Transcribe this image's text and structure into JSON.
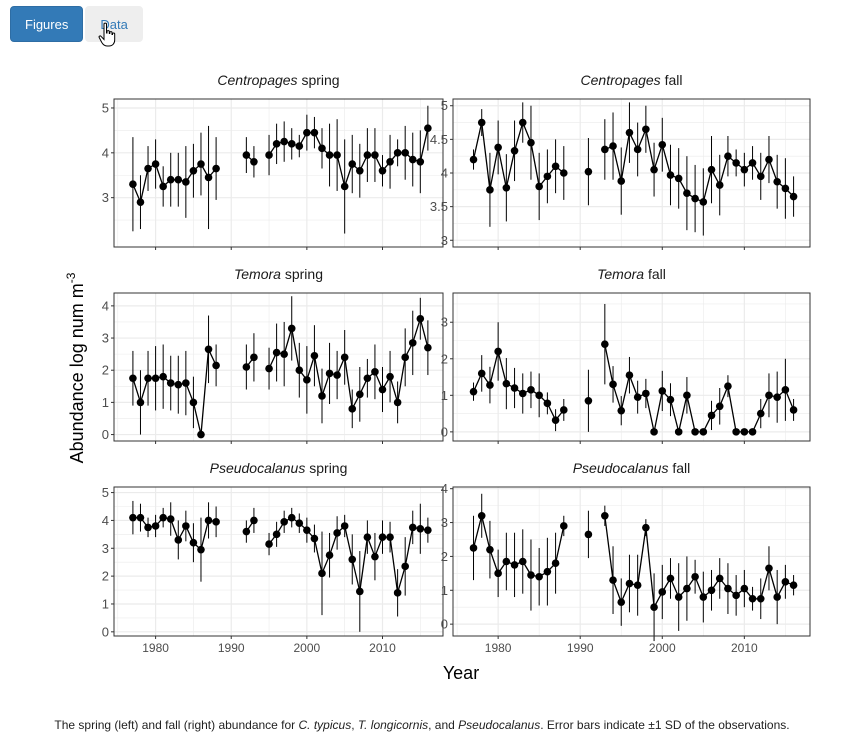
{
  "tabs": [
    {
      "label": "Figures",
      "active": true
    },
    {
      "label": "Data",
      "active": false
    }
  ],
  "cursor_icon": "hand-pointer-icon",
  "caption": {
    "p1": "The spring (left) and fall (right) abundance for ",
    "s1": "C. typicus",
    "p2": ", ",
    "s2": "T. longicornis",
    "p3": ", and ",
    "s3": "Pseudocalanus",
    "p4": ". Error bars indicate ±1 SD of the observations."
  },
  "chart_data": {
    "type": "scatter",
    "xlabel": "Year",
    "ylabel": "Abundance log num m",
    "ylabel_superscript": "-3",
    "xlim": [
      1974.5,
      2018
    ],
    "xticks": [
      1980,
      1990,
      2000,
      2010
    ],
    "colors": {
      "points": "#000000",
      "grid": "#ebebeb",
      "strip_background": "#ffffff"
    },
    "panels": [
      {
        "id": "centropages-spring",
        "title_italic": "Centropages",
        "title_plain": " spring",
        "ylim": [
          1.9,
          5.2
        ],
        "yticks": [
          3,
          4,
          5
        ],
        "x": [
          1977,
          1978,
          1979,
          1980,
          1981,
          1982,
          1983,
          1984,
          1985,
          1986,
          1987,
          1988,
          1992,
          1993,
          1995,
          1996,
          1997,
          1998,
          1999,
          2000,
          2001,
          2002,
          2003,
          2004,
          2005,
          2006,
          2007,
          2008,
          2009,
          2010,
          2011,
          2012,
          2013,
          2014,
          2015,
          2016
        ],
        "y": [
          3.3,
          2.9,
          3.65,
          3.75,
          3.25,
          3.4,
          3.4,
          3.35,
          3.6,
          3.75,
          3.45,
          3.65,
          3.95,
          3.8,
          3.95,
          4.2,
          4.25,
          4.2,
          4.15,
          4.45,
          4.45,
          4.1,
          3.95,
          3.95,
          3.25,
          3.75,
          3.6,
          3.95,
          3.95,
          3.6,
          3.8,
          4.0,
          4.0,
          3.85,
          3.8,
          4.55
        ],
        "sd": [
          1.05,
          0.6,
          0.5,
          0.55,
          0.45,
          0.6,
          0.6,
          0.8,
          0.6,
          0.7,
          1.15,
          0.7,
          0.4,
          0.35,
          0.45,
          0.45,
          0.45,
          0.35,
          0.25,
          0.4,
          0.35,
          0.45,
          0.7,
          0.8,
          1.05,
          0.65,
          0.6,
          0.6,
          0.6,
          0.35,
          0.6,
          0.3,
          0.6,
          0.6,
          0.7,
          0.5
        ],
        "breaks_before_index": [
          12,
          14
        ]
      },
      {
        "id": "centropages-fall",
        "title_italic": "Centropages",
        "title_plain": " fall",
        "ylim": [
          2.9,
          5.1
        ],
        "yticks": [
          3.0,
          3.5,
          4.0,
          4.5,
          5.0
        ],
        "x": [
          1977,
          1978,
          1979,
          1980,
          1981,
          1982,
          1983,
          1984,
          1985,
          1986,
          1987,
          1988,
          1991,
          1993,
          1994,
          1995,
          1996,
          1997,
          1998,
          1999,
          2000,
          2001,
          2002,
          2003,
          2004,
          2005,
          2006,
          2007,
          2008,
          2009,
          2010,
          2011,
          2012,
          2013,
          2014,
          2015,
          2016
        ],
        "y": [
          4.2,
          4.75,
          3.75,
          4.38,
          3.78,
          4.33,
          4.75,
          4.45,
          3.8,
          3.95,
          4.1,
          4.0,
          4.02,
          4.35,
          4.4,
          3.88,
          4.6,
          4.35,
          4.65,
          4.05,
          4.42,
          3.97,
          3.92,
          3.7,
          3.62,
          3.57,
          4.05,
          3.82,
          4.25,
          4.15,
          4.05,
          4.15,
          3.95,
          4.2,
          3.87,
          3.77,
          3.65
        ],
        "sd": [
          0.15,
          0.2,
          0.55,
          0.4,
          0.5,
          0.45,
          0.3,
          0.55,
          0.5,
          0.4,
          0.4,
          0.4,
          0.5,
          0.45,
          0.5,
          0.5,
          0.45,
          0.4,
          0.35,
          0.4,
          0.4,
          0.45,
          0.45,
          0.55,
          0.5,
          0.5,
          0.5,
          0.45,
          0.3,
          0.2,
          0.25,
          0.25,
          0.35,
          0.35,
          0.4,
          0.45,
          0.3
        ],
        "breaks_before_index": [
          12,
          13
        ]
      },
      {
        "id": "temora-spring",
        "title_italic": "Temora",
        "title_plain": " spring",
        "ylim": [
          -0.2,
          4.4
        ],
        "yticks": [
          0,
          1,
          2,
          3,
          4
        ],
        "x": [
          1977,
          1978,
          1979,
          1980,
          1981,
          1982,
          1983,
          1984,
          1985,
          1986,
          1987,
          1988,
          1992,
          1993,
          1995,
          1996,
          1997,
          1998,
          1999,
          2000,
          2001,
          2002,
          2003,
          2004,
          2005,
          2006,
          2007,
          2008,
          2009,
          2010,
          2011,
          2012,
          2013,
          2014,
          2015,
          2016
        ],
        "y": [
          1.75,
          1.0,
          1.75,
          1.75,
          1.8,
          1.6,
          1.55,
          1.6,
          1.0,
          0.0,
          2.65,
          2.15,
          2.1,
          2.4,
          2.05,
          2.55,
          2.5,
          3.3,
          2.0,
          1.7,
          2.45,
          1.2,
          1.9,
          1.85,
          2.4,
          0.8,
          1.25,
          1.75,
          1.95,
          1.4,
          1.8,
          1.0,
          2.4,
          2.85,
          3.6,
          2.7
        ],
        "sd": [
          0.85,
          1.0,
          0.85,
          1.0,
          1.0,
          0.85,
          0.9,
          1.0,
          0.8,
          0.0,
          1.05,
          0.65,
          0.7,
          0.75,
          0.65,
          0.9,
          1.0,
          1.0,
          0.85,
          1.05,
          0.95,
          0.85,
          0.95,
          0.75,
          0.85,
          0.6,
          0.85,
          0.6,
          0.85,
          0.7,
          0.8,
          0.65,
          0.9,
          1.0,
          0.65,
          0.85
        ],
        "breaks_before_index": [
          12,
          14
        ]
      },
      {
        "id": "temora-fall",
        "title_italic": "Temora",
        "title_plain": " fall",
        "ylim": [
          -0.25,
          3.8
        ],
        "yticks": [
          0,
          1,
          2,
          3
        ],
        "x": [
          1977,
          1978,
          1979,
          1980,
          1981,
          1982,
          1983,
          1984,
          1985,
          1986,
          1987,
          1988,
          1991,
          1993,
          1994,
          1995,
          1996,
          1997,
          1998,
          1999,
          2000,
          2001,
          2002,
          2003,
          2004,
          2005,
          2006,
          2007,
          2008,
          2009,
          2010,
          2011,
          2012,
          2013,
          2014,
          2015,
          2016
        ],
        "y": [
          1.1,
          1.6,
          1.28,
          2.2,
          1.32,
          1.2,
          1.05,
          1.15,
          1.0,
          0.78,
          0.32,
          0.6,
          0.85,
          2.4,
          1.3,
          0.58,
          1.55,
          0.95,
          1.05,
          0.0,
          1.12,
          0.88,
          0.0,
          1.0,
          0.0,
          0.0,
          0.45,
          0.7,
          1.25,
          0.0,
          0.0,
          0.0,
          0.5,
          1.0,
          0.95,
          1.15,
          0.6
        ],
        "sd": [
          0.25,
          0.5,
          0.5,
          0.8,
          0.7,
          0.55,
          0.55,
          0.5,
          0.6,
          0.3,
          0.3,
          0.3,
          0.85,
          1.1,
          0.5,
          0.4,
          0.5,
          0.45,
          0.4,
          0.0,
          0.55,
          0.45,
          0.0,
          0.5,
          0.0,
          0.0,
          0.4,
          0.5,
          0.3,
          0.0,
          0.0,
          0.0,
          0.4,
          0.6,
          0.7,
          0.85,
          0.3
        ],
        "breaks_before_index": [
          12,
          13
        ]
      },
      {
        "id": "pseudocalanus-spring",
        "title_italic": "Pseudocalanus",
        "title_plain": " spring",
        "ylim": [
          -0.15,
          5.2
        ],
        "yticks": [
          0,
          1,
          2,
          3,
          4,
          5
        ],
        "x": [
          1977,
          1978,
          1979,
          1980,
          1981,
          1982,
          1983,
          1984,
          1985,
          1986,
          1987,
          1988,
          1992,
          1993,
          1995,
          1996,
          1997,
          1998,
          1999,
          2000,
          2001,
          2002,
          2003,
          2004,
          2005,
          2006,
          2007,
          2008,
          2009,
          2010,
          2011,
          2012,
          2013,
          2014,
          2015,
          2016
        ],
        "y": [
          4.1,
          4.1,
          3.75,
          3.8,
          4.1,
          4.05,
          3.3,
          3.8,
          3.2,
          2.95,
          4.0,
          3.95,
          3.6,
          4.0,
          3.15,
          3.5,
          3.95,
          4.1,
          3.9,
          3.65,
          3.35,
          2.1,
          2.75,
          3.55,
          3.8,
          2.6,
          1.45,
          3.4,
          2.7,
          3.4,
          3.4,
          1.4,
          2.35,
          3.75,
          3.7,
          3.65
        ],
        "sd": [
          0.6,
          0.5,
          0.35,
          0.4,
          0.35,
          0.6,
          0.7,
          0.55,
          0.7,
          1.15,
          0.65,
          0.55,
          0.4,
          0.45,
          0.4,
          0.45,
          0.4,
          0.35,
          0.35,
          0.45,
          0.5,
          1.5,
          0.8,
          0.6,
          0.4,
          0.9,
          1.45,
          0.6,
          0.85,
          0.6,
          0.55,
          0.85,
          1.05,
          0.6,
          0.9,
          0.45
        ],
        "breaks_before_index": [
          12,
          14
        ]
      },
      {
        "id": "pseudocalanus-fall",
        "title_italic": "Pseudocalanus",
        "title_plain": " fall",
        "ylim": [
          -0.35,
          4.05
        ],
        "yticks": [
          0,
          1,
          2,
          3,
          4
        ],
        "x": [
          1977,
          1978,
          1979,
          1980,
          1981,
          1982,
          1983,
          1984,
          1985,
          1986,
          1987,
          1988,
          1991,
          1993,
          1994,
          1995,
          1996,
          1997,
          1998,
          1999,
          2000,
          2001,
          2002,
          2003,
          2004,
          2005,
          2006,
          2007,
          2008,
          2009,
          2010,
          2011,
          2012,
          2013,
          2014,
          2015,
          2016
        ],
        "y": [
          2.25,
          3.2,
          2.2,
          1.5,
          1.85,
          1.75,
          1.85,
          1.45,
          1.4,
          1.55,
          1.8,
          2.9,
          2.65,
          3.2,
          1.3,
          0.65,
          1.2,
          1.15,
          2.85,
          0.5,
          0.95,
          1.35,
          0.8,
          1.05,
          1.4,
          0.8,
          1.0,
          1.35,
          1.05,
          0.85,
          1.05,
          0.75,
          0.75,
          1.65,
          0.8,
          1.25,
          1.15
        ],
        "sd": [
          0.95,
          0.65,
          0.85,
          0.7,
          0.85,
          0.95,
          0.95,
          1.05,
          0.85,
          1.0,
          0.9,
          0.3,
          0.7,
          0.3,
          1.0,
          0.7,
          0.85,
          0.9,
          0.25,
          1.0,
          0.8,
          0.6,
          1.0,
          0.95,
          0.5,
          0.75,
          0.6,
          0.6,
          0.75,
          0.6,
          0.55,
          0.35,
          0.6,
          0.65,
          0.8,
          0.5,
          0.3
        ],
        "breaks_before_index": [
          12,
          13
        ]
      }
    ]
  }
}
